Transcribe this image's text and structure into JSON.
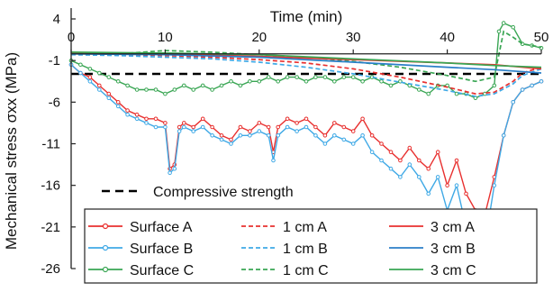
{
  "chart_data": {
    "type": "line",
    "xlabel": "Time (min)",
    "ylabel": "Mechanical stress σxx (MPa)",
    "xlim": [
      0,
      50
    ],
    "ylim": [
      -26,
      4
    ],
    "x_ticks": [
      0,
      10,
      20,
      30,
      40,
      50
    ],
    "y_ticks": [
      4,
      -1,
      -6,
      -11,
      -16,
      -21,
      -26
    ],
    "grid": false,
    "legend_position": "bottom-left (inside)",
    "reference_line": {
      "name": "Compressive strength",
      "y": -2.6,
      "style": "dashed",
      "color": "#000000"
    },
    "series": [
      {
        "name": "Surface A",
        "color": "#e8302f",
        "style": "solid-markers",
        "x": [
          0,
          1,
          2,
          3,
          4,
          5,
          6,
          7,
          8,
          9,
          10,
          10.5,
          11,
          11.5,
          12,
          13,
          14,
          15,
          16,
          17,
          18,
          19,
          20,
          21,
          21.5,
          22,
          23,
          24,
          25,
          26,
          27,
          28,
          29,
          30,
          31,
          32,
          33,
          34,
          35,
          36,
          37,
          38,
          39,
          40,
          41,
          42,
          43,
          43.5,
          44,
          45,
          46,
          47,
          48,
          49,
          50
        ],
        "y": [
          -1.5,
          -2.5,
          -3,
          -4,
          -5,
          -6,
          -7,
          -7.5,
          -8,
          -8,
          -8.5,
          -14,
          -13.5,
          -9,
          -8.5,
          -9,
          -8,
          -9,
          -10,
          -10.5,
          -9,
          -9.5,
          -8.5,
          -9,
          -12,
          -9,
          -8,
          -8.5,
          -8,
          -9,
          -10,
          -8.5,
          -9,
          -9.5,
          -8,
          -10,
          -11,
          -12,
          -13,
          -11.5,
          -13,
          -14,
          -12,
          -16,
          -13,
          -17,
          -19,
          -20,
          -19.5,
          -15,
          -10,
          -6,
          -4.5,
          -4,
          -3.5
        ]
      },
      {
        "name": "Surface B",
        "color": "#3fa9e6",
        "style": "solid-markers",
        "x": [
          0,
          1,
          2,
          3,
          4,
          5,
          6,
          7,
          8,
          9,
          10,
          10.5,
          11,
          11.5,
          12,
          13,
          14,
          15,
          16,
          17,
          18,
          19,
          20,
          21,
          21.5,
          22,
          23,
          24,
          25,
          26,
          27,
          28,
          29,
          30,
          31,
          32,
          33,
          34,
          35,
          36,
          37,
          38,
          39,
          40,
          41,
          42,
          43,
          43.5,
          44,
          45,
          46,
          47,
          48,
          49,
          50
        ],
        "y": [
          -1.5,
          -2.5,
          -3.5,
          -4.5,
          -5.5,
          -6.5,
          -7.5,
          -8,
          -8.5,
          -9,
          -9,
          -14.5,
          -14,
          -9.5,
          -9,
          -9.5,
          -9,
          -10,
          -10.5,
          -11,
          -10,
          -10,
          -9.5,
          -10,
          -13,
          -10,
          -9,
          -9.5,
          -9,
          -10,
          -11,
          -10,
          -10.5,
          -11,
          -10,
          -12,
          -13,
          -14,
          -15,
          -13.5,
          -15,
          -17,
          -15,
          -19,
          -16,
          -21,
          -22,
          -24.5,
          -23,
          -16,
          -10,
          -6,
          -4.5,
          -4,
          -3.5
        ]
      },
      {
        "name": "Surface C",
        "color": "#3aa654",
        "style": "solid-markers",
        "x": [
          0,
          1,
          2,
          3,
          4,
          5,
          6,
          7,
          8,
          9,
          10,
          11,
          12,
          13,
          14,
          15,
          16,
          17,
          18,
          19,
          20,
          21,
          22,
          23,
          24,
          25,
          26,
          27,
          28,
          29,
          30,
          31,
          32,
          33,
          34,
          35,
          36,
          37,
          38,
          39,
          40,
          41,
          42,
          43,
          44,
          45,
          45.5,
          46,
          47,
          48,
          49,
          50
        ],
        "y": [
          -1,
          -1.5,
          -2,
          -2.5,
          -3,
          -3.5,
          -4,
          -4.5,
          -4.5,
          -4.5,
          -5,
          -4.5,
          -4,
          -4.5,
          -4,
          -4.5,
          -4,
          -3.5,
          -4,
          -3.5,
          -3.5,
          -3,
          -3.5,
          -3,
          -3,
          -3.5,
          -3,
          -3,
          -3.5,
          -3,
          -3,
          -3.5,
          -3,
          -3.5,
          -4,
          -3.5,
          -4,
          -4.5,
          -5,
          -4,
          -4,
          -5,
          -5,
          -5.5,
          -5,
          -4,
          2.5,
          3.5,
          3,
          1,
          0.8,
          0.5
        ]
      },
      {
        "name": "1 cm A",
        "color": "#e8302f",
        "style": "dashed",
        "x": [
          0,
          5,
          10,
          15,
          20,
          25,
          30,
          35,
          40,
          43,
          45,
          47,
          48,
          50
        ],
        "y": [
          -0.2,
          -0.3,
          -0.4,
          -0.6,
          -0.9,
          -1.3,
          -2.0,
          -3.0,
          -4.2,
          -5.0,
          -4.8,
          -3.5,
          -2.5,
          -1.8
        ]
      },
      {
        "name": "1 cm B",
        "color": "#3fa9e6",
        "style": "dashed",
        "x": [
          0,
          5,
          10,
          15,
          20,
          25,
          30,
          35,
          40,
          43,
          45,
          47,
          48,
          50
        ],
        "y": [
          -0.3,
          -0.4,
          -0.6,
          -0.8,
          -1.2,
          -1.8,
          -2.6,
          -3.6,
          -4.6,
          -5.3,
          -5.0,
          -3.8,
          -2.8,
          -2.0
        ]
      },
      {
        "name": "1 cm C",
        "color": "#3aa654",
        "style": "dashed",
        "x": [
          0,
          5,
          10,
          15,
          20,
          25,
          30,
          35,
          40,
          43,
          45,
          46,
          47,
          48,
          50
        ],
        "y": [
          -0.1,
          -0.2,
          0.2,
          0,
          -0.3,
          -0.6,
          -1.1,
          -1.8,
          -2.8,
          -3.5,
          -3.0,
          2.5,
          1.8,
          1.0,
          0.6
        ]
      },
      {
        "name": "3 cm A",
        "color": "#e8302f",
        "style": "solid",
        "x": [
          0,
          10,
          20,
          30,
          40,
          45,
          50
        ],
        "y": [
          -0.1,
          -0.2,
          -0.5,
          -0.9,
          -1.3,
          -1.5,
          -2.0
        ]
      },
      {
        "name": "3 cm B",
        "color": "#2b7fc8",
        "style": "solid",
        "x": [
          0,
          10,
          20,
          30,
          40,
          45,
          50
        ],
        "y": [
          -0.2,
          -0.3,
          -0.6,
          -1.2,
          -1.8,
          -2.1,
          -2.5
        ]
      },
      {
        "name": "3 cm C",
        "color": "#3aa654",
        "style": "solid",
        "x": [
          0,
          10,
          20,
          30,
          40,
          45,
          50
        ],
        "y": [
          0,
          -0.1,
          -0.3,
          -0.8,
          -1.3,
          -1.6,
          -1.8
        ]
      }
    ]
  }
}
